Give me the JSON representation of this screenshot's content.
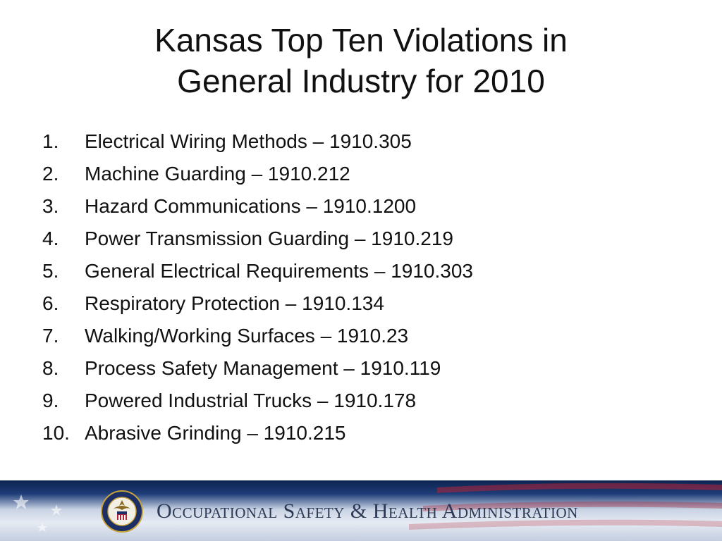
{
  "title": {
    "line1": "Kansas Top Ten Violations in",
    "line2": "General Industry for 2010"
  },
  "violations": [
    {
      "number": "1.",
      "text": "Electrical Wiring Methods – 1910.305"
    },
    {
      "number": "2.",
      "text": "Machine Guarding – 1910.212"
    },
    {
      "number": "3.",
      "text": "Hazard Communications – 1910.1200"
    },
    {
      "number": "4.",
      "text": "Power Transmission Guarding – 1910.219"
    },
    {
      "number": "5.",
      "text": "General Electrical Requirements – 1910.303"
    },
    {
      "number": "6.",
      "text": "Respiratory Protection – 1910.134"
    },
    {
      "number": "7.",
      "text": "Walking/Working Surfaces – 1910.23"
    },
    {
      "number": "8.",
      "text": "Process Safety Management – 1910.119"
    },
    {
      "number": "9.",
      "text": "Powered Industrial Trucks – 1910.178"
    },
    {
      "number": "10.",
      "text": "Abrasive Grinding – 1910.215"
    }
  ],
  "footer": {
    "agency_name": "Occupational Safety & Health Administration",
    "seal_icon": "dol-seal-icon",
    "colors": {
      "navy": "#0d2350",
      "banner_light": "#e6ebf3",
      "text": "#2c3a55",
      "stripe_red": "#b22234"
    }
  }
}
